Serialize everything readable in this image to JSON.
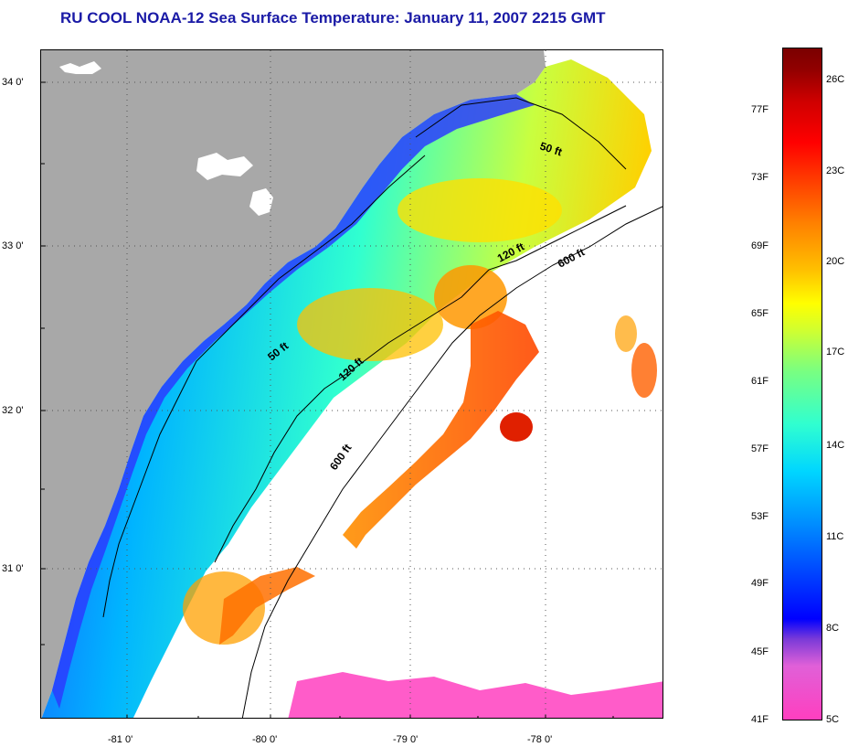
{
  "title": "RU COOL  NOAA-12  Sea Surface Temperature:  January 11, 2007 2215 GMT",
  "latitude_labels": [
    "34 0'",
    "33 0'",
    "32 0'",
    "31 0'"
  ],
  "longitude_labels": [
    "-81 0'",
    "-80 0'",
    "-79 0'",
    "-78 0'"
  ],
  "isobath_labels": [
    "50 ft",
    "120 ft",
    "600 ft",
    "50 ft",
    "120 ft",
    "600 ft"
  ],
  "colorbar": {
    "fahrenheit_labels": [
      "77F",
      "73F",
      "69F",
      "65F",
      "61F",
      "57F",
      "53F",
      "49F",
      "45F",
      "41F"
    ],
    "celsius_labels": [
      "26C",
      "23C",
      "20C",
      "17C",
      "14C",
      "11C",
      "8C",
      "5C"
    ]
  },
  "colors": {
    "land": "#a8a8a8",
    "title": "#1a1aa6",
    "no_data": "#ffffff"
  }
}
